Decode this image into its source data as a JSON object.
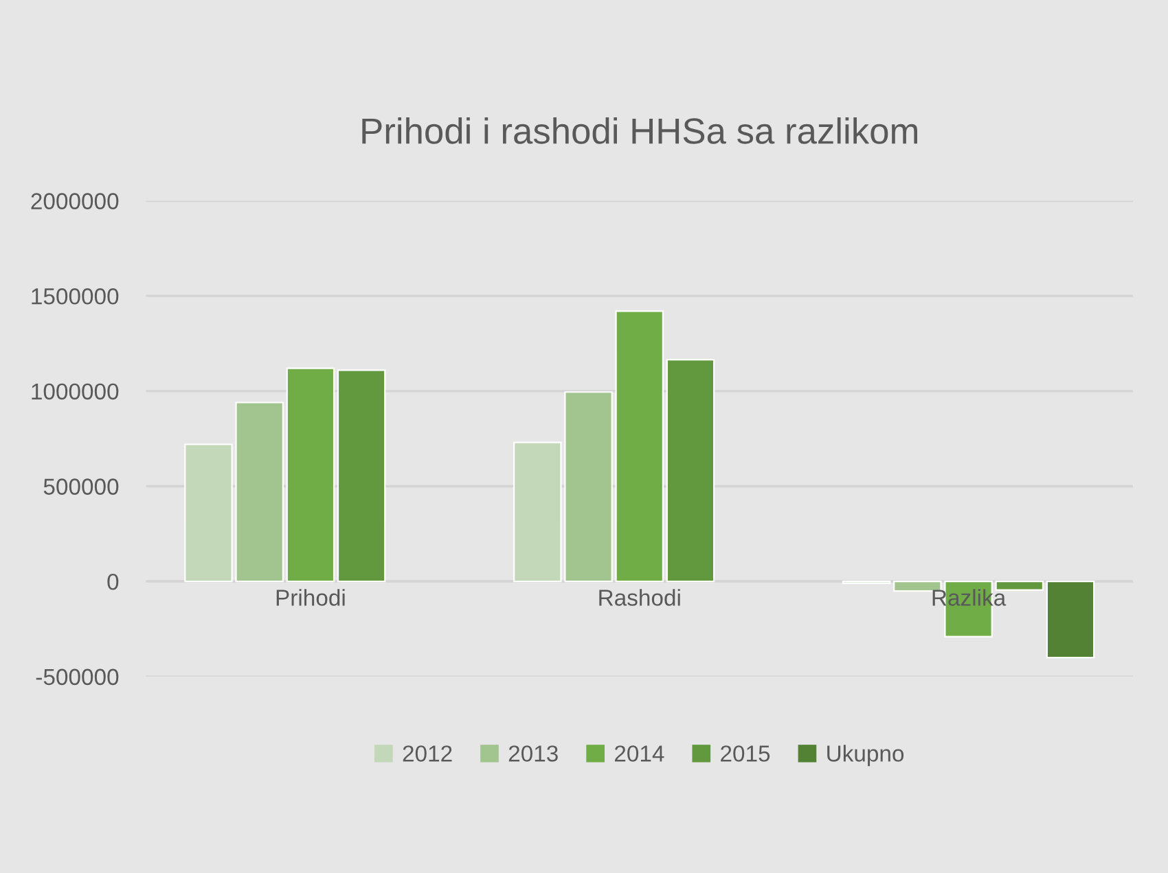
{
  "chart_data": {
    "type": "bar",
    "title": "Prihodi i rashodi HHSa sa razlikom",
    "categories": [
      "Prihodi",
      "Rashodi",
      "Razlika"
    ],
    "series": [
      {
        "name": "2012",
        "color": "#c3d7b9",
        "values": [
          720000,
          730000,
          -10000
        ]
      },
      {
        "name": "2013",
        "color": "#a2c48f",
        "values": [
          940000,
          995000,
          -50000
        ]
      },
      {
        "name": "2014",
        "color": "#70ad47",
        "values": [
          1120000,
          1420000,
          -290000
        ]
      },
      {
        "name": "2015",
        "color": "#62993e",
        "values": [
          1110000,
          1165000,
          -45000
        ]
      },
      {
        "name": "Ukupno",
        "color": "#548235",
        "values": [
          null,
          null,
          -400000
        ]
      }
    ],
    "ylim": [
      -500000,
      2000000
    ],
    "yticks": [
      -500000,
      0,
      500000,
      1000000,
      1500000,
      2000000
    ],
    "grid": "y",
    "legend": "bottom"
  }
}
